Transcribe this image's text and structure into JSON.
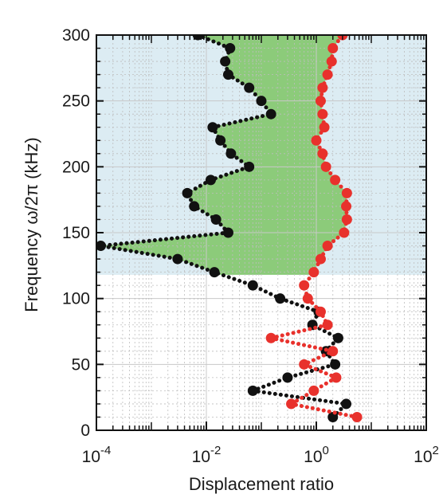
{
  "chart_data": {
    "type": "scatter",
    "title": "",
    "xlabel": "Displacement ratio",
    "ylabel": "Frequency ω/2π (kHz)",
    "x_scale": "log",
    "xlim": [
      0.0001,
      100
    ],
    "ylim": [
      0,
      300
    ],
    "x_ticks": [
      {
        "value": 0.0001,
        "base": "10",
        "exp": "-4"
      },
      {
        "value": 0.01,
        "base": "10",
        "exp": "-2"
      },
      {
        "value": 1,
        "base": "10",
        "exp": "0"
      },
      {
        "value": 100,
        "base": "10",
        "exp": "2"
      }
    ],
    "y_ticks": [
      0,
      50,
      100,
      150,
      200,
      250,
      300
    ],
    "grid": true,
    "shaded_regions": [
      {
        "kind": "band",
        "y_from": 118,
        "y_to": 300,
        "color": "#dcecf3"
      },
      {
        "kind": "series_envelope",
        "y_from": 118,
        "y_to": 300,
        "color": "#8ccb7a"
      }
    ],
    "series": [
      {
        "color": "#111111",
        "points": [
          {
            "y": 10,
            "x": 2.0
          },
          {
            "y": 20,
            "x": 3.5
          },
          {
            "y": 30,
            "x": 0.07
          },
          {
            "y": 40,
            "x": 0.3
          },
          {
            "y": 50,
            "x": 2.2
          },
          {
            "y": 60,
            "x": 1.5
          },
          {
            "y": 70,
            "x": 2.5
          },
          {
            "y": 80,
            "x": 0.85
          },
          {
            "y": 90,
            "x": 1.1
          },
          {
            "y": 100,
            "x": 0.22
          },
          {
            "y": 110,
            "x": 0.07
          },
          {
            "y": 120,
            "x": 0.014
          },
          {
            "y": 130,
            "x": 0.003
          },
          {
            "y": 140,
            "x": 0.00012
          },
          {
            "y": 150,
            "x": 0.025
          },
          {
            "y": 160,
            "x": 0.015
          },
          {
            "y": 170,
            "x": 0.006
          },
          {
            "y": 180,
            "x": 0.0045
          },
          {
            "y": 190,
            "x": 0.012
          },
          {
            "y": 200,
            "x": 0.06
          },
          {
            "y": 210,
            "x": 0.028
          },
          {
            "y": 220,
            "x": 0.018
          },
          {
            "y": 230,
            "x": 0.013
          },
          {
            "y": 240,
            "x": 0.15
          },
          {
            "y": 250,
            "x": 0.1
          },
          {
            "y": 260,
            "x": 0.06
          },
          {
            "y": 270,
            "x": 0.025
          },
          {
            "y": 280,
            "x": 0.022
          },
          {
            "y": 290,
            "x": 0.027
          },
          {
            "y": 300,
            "x": 0.007
          }
        ]
      },
      {
        "color": "#e8312c",
        "points": [
          {
            "y": 10,
            "x": 5.5
          },
          {
            "y": 20,
            "x": 0.35
          },
          {
            "y": 30,
            "x": 0.9
          },
          {
            "y": 40,
            "x": 2.3
          },
          {
            "y": 50,
            "x": 0.6
          },
          {
            "y": 60,
            "x": 2.0
          },
          {
            "y": 70,
            "x": 0.15
          },
          {
            "y": 80,
            "x": 1.6
          },
          {
            "y": 90,
            "x": 1.2
          },
          {
            "y": 100,
            "x": 0.7
          },
          {
            "y": 110,
            "x": 0.6
          },
          {
            "y": 120,
            "x": 0.9
          },
          {
            "y": 130,
            "x": 1.2
          },
          {
            "y": 140,
            "x": 1.6
          },
          {
            "y": 150,
            "x": 3.2
          },
          {
            "y": 160,
            "x": 3.6
          },
          {
            "y": 170,
            "x": 3.5
          },
          {
            "y": 180,
            "x": 3.6
          },
          {
            "y": 190,
            "x": 2.2
          },
          {
            "y": 200,
            "x": 1.5
          },
          {
            "y": 210,
            "x": 1.3
          },
          {
            "y": 220,
            "x": 1.0
          },
          {
            "y": 230,
            "x": 1.4
          },
          {
            "y": 240,
            "x": 1.3
          },
          {
            "y": 250,
            "x": 1.2
          },
          {
            "y": 260,
            "x": 1.3
          },
          {
            "y": 270,
            "x": 1.6
          },
          {
            "y": 280,
            "x": 1.9
          },
          {
            "y": 290,
            "x": 2.0
          },
          {
            "y": 300,
            "x": 3.0
          }
        ]
      }
    ]
  }
}
